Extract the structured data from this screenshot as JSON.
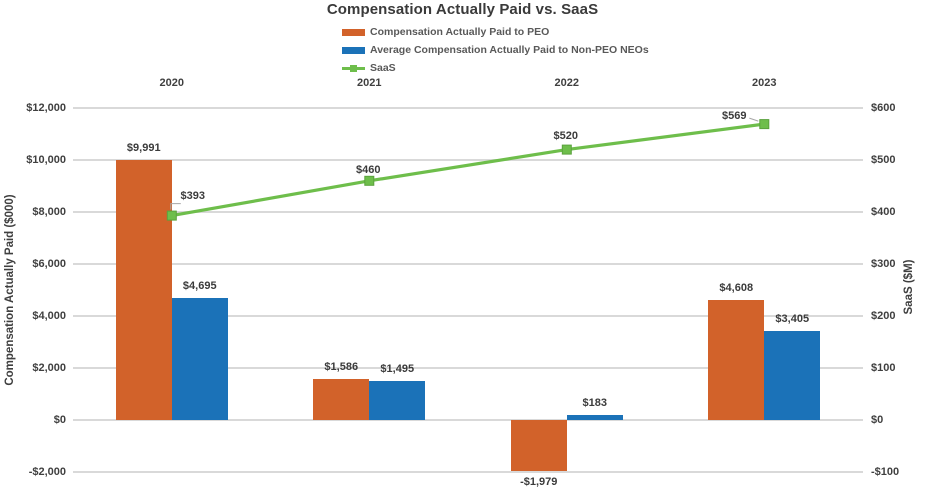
{
  "title": "Compensation Actually Paid vs. SaaS",
  "chart_data": {
    "type": "combo-bar-line",
    "categories": [
      "2020",
      "2021",
      "2022",
      "2023"
    ],
    "series": [
      {
        "name": "Compensation Actually Paid to PEO",
        "chart": "bar",
        "axis": "left",
        "color": "#D2622A",
        "values": [
          9991,
          1586,
          -1979,
          4608
        ],
        "value_labels": [
          "$9,991",
          "$1,586",
          "-$1,979",
          "$4,608"
        ]
      },
      {
        "name": "Average Compensation Actually Paid to Non-PEO NEOs",
        "chart": "bar",
        "axis": "left",
        "color": "#1B72B8",
        "values": [
          4695,
          1495,
          183,
          3405
        ],
        "value_labels": [
          "$4,695",
          "$1,495",
          "$183",
          "$3,405"
        ]
      },
      {
        "name": "SaaS",
        "chart": "line",
        "axis": "right",
        "color": "#6EBE4B",
        "values": [
          393,
          460,
          520,
          569
        ],
        "value_labels": [
          "$393",
          "$460",
          "$520",
          "$569"
        ],
        "label_offsets": [
          {
            "dx": 21,
            "dy": -19,
            "leader": true
          },
          {
            "dx": -1,
            "dy": -10,
            "leader": false
          },
          {
            "dx": -1,
            "dy": -13,
            "leader": false
          },
          {
            "dx": -30,
            "dy": -7,
            "leader": true
          }
        ]
      }
    ],
    "axes": {
      "left": {
        "title": "Compensation Actually Paid ($000)",
        "min": -2000,
        "max": 12000,
        "step": 2000,
        "tick_labels": [
          "$12,000",
          "$10,000",
          "$8,000",
          "$6,000",
          "$4,000",
          "$2,000",
          "$0",
          "-$2,000"
        ]
      },
      "right": {
        "title": "SaaS ($M)",
        "min": -100,
        "max": 600,
        "step": 100,
        "tick_labels": [
          "$600",
          "$500",
          "$400",
          "$300",
          "$200",
          "$100",
          "$0",
          "-$100"
        ]
      }
    },
    "grid": "horizontal-only",
    "legend_position": "top-left-below-title",
    "category_labels_position": "above-plot"
  },
  "colors": {
    "gridline": "#D9D9D9",
    "axis_text": "#3F3F3F",
    "legend_text": "#595959",
    "leader_line": "#A6A6A6",
    "background": "#FFFFFF"
  }
}
